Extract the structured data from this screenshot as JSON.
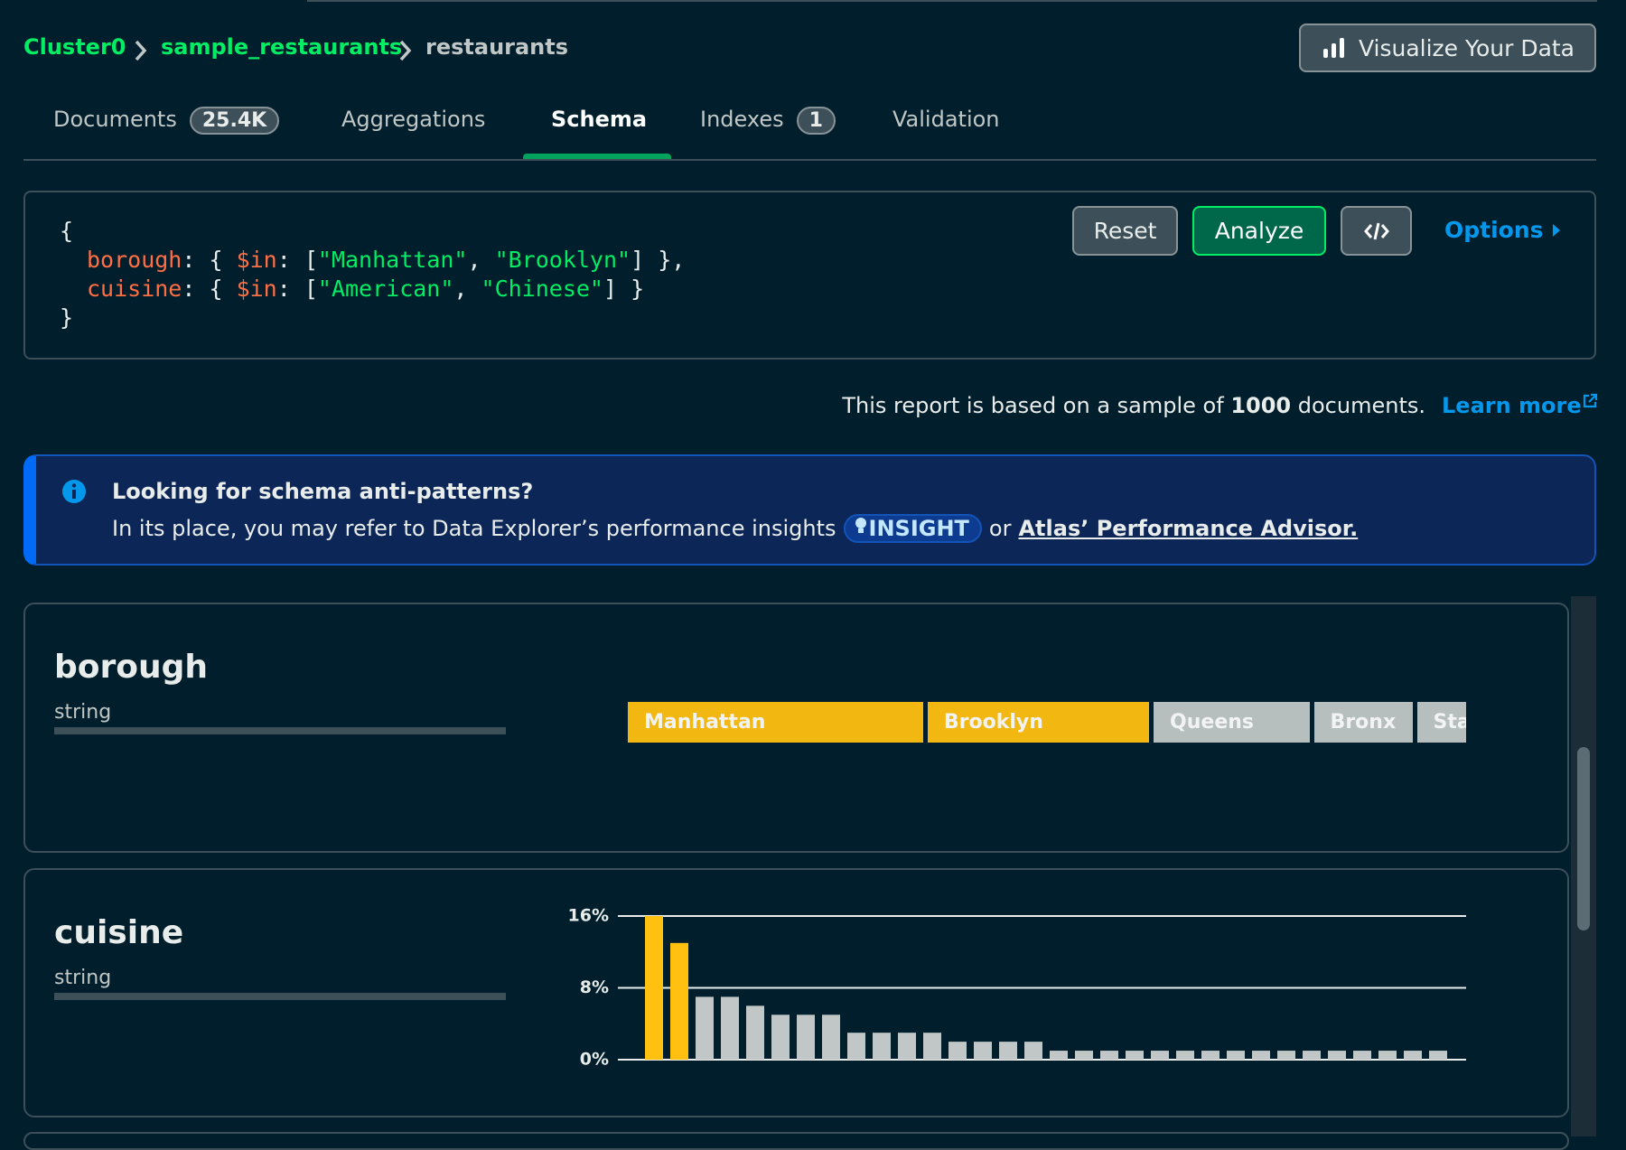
{
  "breadcrumb": [
    "Cluster0",
    "sample_restaurants",
    "restaurants"
  ],
  "visualize_button": "Visualize Your Data",
  "tabs": [
    {
      "label": "Documents",
      "badge": "25.4K"
    },
    {
      "label": "Aggregations"
    },
    {
      "label": "Schema",
      "active": true
    },
    {
      "label": "Indexes",
      "badge": "1"
    },
    {
      "label": "Validation"
    }
  ],
  "query": {
    "lines": [
      [
        {
          "text": "{",
          "kind": "punct"
        }
      ],
      [
        {
          "text": "borough",
          "kind": "key"
        },
        {
          "text": ": { ",
          "kind": "punct"
        },
        {
          "text": "$in",
          "kind": "key"
        },
        {
          "text": ": [",
          "kind": "punct"
        },
        {
          "text": "\"Manhattan\"",
          "kind": "string"
        },
        {
          "text": ", ",
          "kind": "punct"
        },
        {
          "text": "\"Brooklyn\"",
          "kind": "string"
        },
        {
          "text": "] },",
          "kind": "punct"
        }
      ],
      [
        {
          "text": "cuisine",
          "kind": "key"
        },
        {
          "text": ": { ",
          "kind": "punct"
        },
        {
          "text": "$in",
          "kind": "key"
        },
        {
          "text": ": [",
          "kind": "punct"
        },
        {
          "text": "\"American\"",
          "kind": "string"
        },
        {
          "text": ", ",
          "kind": "punct"
        },
        {
          "text": "\"Chinese\"",
          "kind": "string"
        },
        {
          "text": "] }",
          "kind": "punct"
        }
      ],
      [
        {
          "text": "}",
          "kind": "punct"
        }
      ]
    ]
  },
  "buttons": {
    "reset": "Reset",
    "analyze": "Analyze",
    "options": "Options"
  },
  "report": {
    "prefix": "This report is based on a sample of",
    "count": 1000,
    "suffix": "documents.",
    "link": "Learn more"
  },
  "banner": {
    "title": "Looking for schema anti-patterns?",
    "text": "In its place, you may refer to Data Explorer’s performance insights",
    "badge": "INSIGHT",
    "or": "or",
    "link": "Atlas’ Performance Advisor."
  },
  "chart_data": [
    {
      "type": "segments",
      "title": "borough",
      "subtitle": "string",
      "categories": [
        "Manhattan",
        "Brooklyn",
        "Queens",
        "Bronx",
        "Staten Island"
      ],
      "values": [
        36,
        27,
        19,
        12,
        6
      ],
      "colors": [
        "#ffc010",
        "#ffc010",
        "#c1c7c6",
        "#c1c7c6",
        "#c1c7c6"
      ]
    },
    {
      "type": "bar",
      "title": "cuisine",
      "subtitle": "string",
      "categories": [
        null,
        null,
        null,
        null,
        null,
        null,
        null,
        null,
        null,
        null,
        null,
        null,
        null,
        null,
        null,
        null,
        null,
        null,
        null,
        null,
        null,
        null,
        null,
        null,
        null,
        null,
        null,
        null,
        null,
        null,
        null,
        null
      ],
      "values": [
        16,
        13,
        7,
        7,
        6,
        5,
        5,
        5,
        3,
        3,
        3,
        3,
        2,
        2,
        2,
        2,
        1,
        1,
        1,
        1,
        1,
        1,
        1,
        1,
        1,
        1,
        1,
        1,
        1,
        1,
        1,
        1
      ],
      "colors": [
        "#ffc010",
        "#ffc010",
        "#c1c7c6",
        "#c1c7c6",
        "#c1c7c6",
        "#c1c7c6",
        "#c1c7c6",
        "#c1c7c6",
        "#c1c7c6",
        "#c1c7c6",
        "#c1c7c6",
        "#c1c7c6",
        "#c1c7c6",
        "#c1c7c6",
        "#c1c7c6",
        "#c1c7c6",
        "#c1c7c6",
        "#c1c7c6",
        "#c1c7c6",
        "#c1c7c6",
        "#c1c7c6",
        "#c1c7c6",
        "#c1c7c6",
        "#c1c7c6",
        "#c1c7c6",
        "#c1c7c6",
        "#c1c7c6",
        "#c1c7c6",
        "#c1c7c6",
        "#c1c7c6",
        "#c1c7c6",
        "#c1c7c6"
      ],
      "ylim": [
        0,
        16
      ],
      "yticks": [
        {
          "value": 0,
          "label": "0%"
        },
        {
          "value": 8,
          "label": "8%"
        },
        {
          "value": 16,
          "label": "16%"
        }
      ],
      "grid": true
    }
  ]
}
